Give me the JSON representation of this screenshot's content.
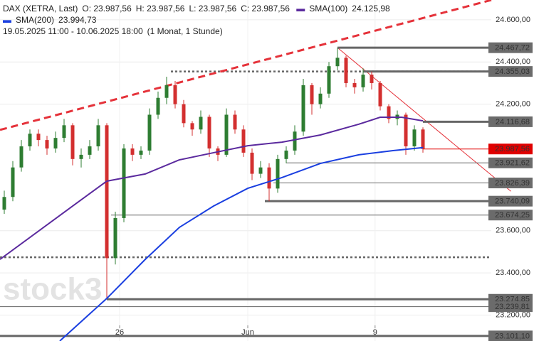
{
  "chart_data": {
    "type": "candlestick",
    "instrument": "DAX (XETRA, Last)",
    "ohlc_labels": [
      "O: 23.987,56",
      "H: 23.987,56",
      "L: 23.987,56",
      "C: 23.987,56"
    ],
    "range_text": "19.05.2025 11:00 - 10.06.2025 18:00",
    "interval_text": "(1 Monat, 1 Stunde)",
    "watermark": "stock3",
    "xlim": [
      -0.5,
      57
    ],
    "ylim": [
      23077,
      24694
    ],
    "yticks": [
      {
        "value": 24600,
        "label": "24.600,00"
      },
      {
        "value": 24400,
        "label": "24.400,00"
      },
      {
        "value": 24200,
        "label": "24.200,00"
      },
      {
        "value": 23600,
        "label": "23.600,00"
      },
      {
        "value": 23400,
        "label": "23.400,00"
      },
      {
        "value": 23200,
        "label": "23.200,00"
      }
    ],
    "xticks": [
      {
        "value": 13.5,
        "label": "26"
      },
      {
        "value": 28.5,
        "label": "Jun"
      },
      {
        "value": 43.4,
        "label": "9"
      }
    ],
    "grid": true,
    "up_color": "#2e7d32",
    "down_color": "#d32f2f",
    "candles": [
      [
        23700,
        23790,
        23680,
        23760
      ],
      [
        23760,
        23930,
        23740,
        23900
      ],
      [
        23900,
        24030,
        23880,
        24000
      ],
      [
        24000,
        24080,
        23980,
        24060
      ],
      [
        24060,
        24080,
        24000,
        24030
      ],
      [
        24030,
        24050,
        23960,
        23990
      ],
      [
        23990,
        24070,
        23970,
        24040
      ],
      [
        24040,
        24130,
        24020,
        24100
      ],
      [
        24100,
        24110,
        23910,
        23940
      ],
      [
        23940,
        23990,
        23900,
        23960
      ],
      [
        23960,
        24030,
        23940,
        24000
      ],
      [
        24000,
        24130,
        23980,
        24100
      ],
      [
        24100,
        24110,
        23275,
        23470
      ],
      [
        23470,
        23690,
        23440,
        23660
      ],
      [
        23660,
        24010,
        23640,
        23990
      ],
      [
        23990,
        24010,
        23930,
        23960
      ],
      [
        23960,
        24000,
        23940,
        23980
      ],
      [
        23980,
        24180,
        23960,
        24150
      ],
      [
        24150,
        24260,
        24130,
        24230
      ],
      [
        24230,
        24330,
        24200,
        24290
      ],
      [
        24290,
        24310,
        24180,
        24200
      ],
      [
        24200,
        24220,
        24090,
        24110
      ],
      [
        24110,
        24120,
        24050,
        24080
      ],
      [
        24080,
        24170,
        24060,
        24140
      ],
      [
        24140,
        24150,
        23950,
        23990
      ],
      [
        23990,
        24000,
        23930,
        23960
      ],
      [
        23960,
        24180,
        23950,
        24150
      ],
      [
        24150,
        24170,
        24060,
        24080
      ],
      [
        24080,
        24100,
        23950,
        23970
      ],
      [
        23970,
        23990,
        23840,
        23870
      ],
      [
        23870,
        23930,
        23850,
        23900
      ],
      [
        23900,
        23920,
        23740,
        23800
      ],
      [
        23800,
        23960,
        23780,
        23940
      ],
      [
        23940,
        24000,
        23920,
        23980
      ],
      [
        23980,
        24100,
        23960,
        24070
      ],
      [
        24070,
        24320,
        24050,
        24290
      ],
      [
        24290,
        24300,
        24150,
        24200
      ],
      [
        24200,
        24280,
        24180,
        24250
      ],
      [
        24250,
        24400,
        24230,
        24380
      ],
      [
        24380,
        24468,
        24360,
        24420
      ],
      [
        24420,
        24430,
        24280,
        24300
      ],
      [
        24300,
        24320,
        24250,
        24280
      ],
      [
        24280,
        24370,
        24260,
        24340
      ],
      [
        24340,
        24355,
        24270,
        24300
      ],
      [
        24300,
        24310,
        24170,
        24190
      ],
      [
        24190,
        24200,
        24110,
        24130
      ],
      [
        24130,
        24170,
        24100,
        24150
      ],
      [
        24150,
        24160,
        23960,
        24000
      ],
      [
        24000,
        24100,
        23980,
        24080
      ],
      [
        24080,
        24090,
        23970,
        23987.56
      ]
    ],
    "series": [
      {
        "name": "SMA(100)",
        "value_label": "24.125,98",
        "color": "#5b2a9e",
        "x": [
          -0.5,
          8,
          12,
          16.5,
          20.5,
          24.5,
          28.5,
          32.5,
          37,
          41.5,
          44,
          46.5,
          49
        ],
        "values": [
          23464,
          23717,
          23835,
          23869,
          23936,
          23970,
          24003,
          24020,
          24054,
          24105,
          24138,
          24138,
          24121
        ]
      },
      {
        "name": "SMA(200)",
        "value_label": "23.994,73",
        "color": "#1a3fe0",
        "x": [
          6.5,
          12,
          16.5,
          20.5,
          24.5,
          28.5,
          32.5,
          37,
          41.5,
          45.5,
          49
        ],
        "values": [
          23077,
          23279,
          23464,
          23616,
          23717,
          23801,
          23852,
          23919,
          23960,
          23980,
          23994
        ]
      }
    ],
    "levels": [
      {
        "value": 24467.72,
        "label": "24.467,72",
        "from": 39,
        "weight": 3
      },
      {
        "value": 24355.03,
        "label": "24.355,03",
        "from": 42,
        "weight": 3
      },
      {
        "value": 24116.68,
        "label": "24.116,68",
        "from": 49,
        "weight": 3
      },
      {
        "value": 23987.56,
        "label": "23.987,56",
        "from": 49,
        "weight": 1,
        "color": "#e00000"
      },
      {
        "value": 23921.62,
        "label": "23.921,62",
        "from": 33,
        "weight": 1
      },
      {
        "value": 23826.39,
        "label": "23.826,39",
        "from": 31.5,
        "weight": 1
      },
      {
        "value": 23740.09,
        "label": "23.740,09",
        "from": 30.5,
        "weight": 3
      },
      {
        "value": 23674.25,
        "label": "23.674,25",
        "from": 12.5,
        "weight": 1
      },
      {
        "value": 23274.85,
        "label": "23.274,85",
        "from": 12,
        "weight": 3
      },
      {
        "value": 23239.81,
        "label": "23.239,81",
        "from": -0.5,
        "weight": 1
      },
      {
        "value": 23101.1,
        "label": "23.101,10",
        "from": -0.5,
        "weight": 3
      }
    ],
    "dotted_levels": [
      {
        "value": 24355.03,
        "from": 19.5
      },
      {
        "value": 23474,
        "from": -0.5
      }
    ],
    "trend_lines": [
      {
        "x": [
          -0.5,
          57
        ],
        "values": [
          24078,
          24694
        ],
        "color": "#e5323a",
        "dashed": true
      },
      {
        "x": [
          39,
          59.3
        ],
        "values": [
          24467.72,
          23787
        ],
        "color": "#e5323a",
        "dashed": false
      }
    ]
  }
}
